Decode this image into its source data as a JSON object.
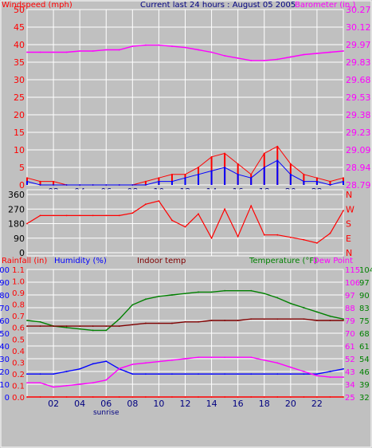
{
  "header": {
    "left_label": "Windspeed (mph)",
    "center_label": "Current last 24 hours : August 05 2005",
    "right_label": "Barometer (in.)"
  },
  "colors": {
    "wind": "#0000ff",
    "gust": "#ff0000",
    "barometer": "#ff00ff",
    "direction": "#ff0000",
    "temperature": "#008000",
    "dew_point": "#ff00ff",
    "humidity": "#0000ff",
    "indoor_temp": "#800000",
    "rainfall": "#ff0000",
    "grid": "#ffffff",
    "background": "#c0c0c0"
  },
  "chart_data": [
    {
      "type": "line",
      "panel": "wind_barometer",
      "title": "",
      "xlabel": "",
      "x_ticks": [
        "02",
        "04",
        "06",
        "08",
        "10",
        "12",
        "14",
        "16",
        "18",
        "20",
        "22"
      ],
      "x_marker": "sunrise",
      "ylabel_left": "Windspeed (mph)",
      "yticks_left": [
        "50",
        "45",
        "40",
        "35",
        "30",
        "25",
        "20",
        "15",
        "10",
        "5",
        "0"
      ],
      "ylim_left": [
        0,
        50
      ],
      "ylabel_right": "Barometer (in.)",
      "yticks_right": [
        "30.27",
        "30.12",
        "29.97",
        "29.83",
        "29.68",
        "29.53",
        "29.38",
        "29.23",
        "29.09",
        "28.94",
        "28.79"
      ],
      "ylim_right": [
        28.79,
        30.27
      ],
      "x_hours": [
        0,
        1,
        2,
        3,
        4,
        5,
        6,
        7,
        8,
        9,
        10,
        11,
        12,
        13,
        14,
        15,
        16,
        17,
        18,
        19,
        20,
        21,
        22,
        23,
        24
      ],
      "series": [
        {
          "name": "Barometer (in.)",
          "axis": "right",
          "values": [
            29.91,
            29.91,
            29.91,
            29.91,
            29.92,
            29.92,
            29.93,
            29.93,
            29.96,
            29.97,
            29.97,
            29.96,
            29.95,
            29.93,
            29.91,
            29.88,
            29.86,
            29.84,
            29.84,
            29.85,
            29.87,
            29.89,
            29.9,
            29.91,
            29.92
          ]
        },
        {
          "name": "Wind gust (mph)",
          "axis": "left",
          "values": [
            2,
            1,
            1,
            0,
            0,
            0,
            0,
            0,
            0,
            1,
            2,
            3,
            3,
            5,
            8,
            9,
            6,
            3,
            9,
            11,
            6,
            3,
            2,
            1,
            2
          ]
        },
        {
          "name": "Windspeed (mph)",
          "axis": "left",
          "values": [
            1,
            0,
            0,
            0,
            0,
            0,
            0,
            0,
            0,
            0,
            1,
            1,
            2,
            3,
            4,
            5,
            3,
            2,
            5,
            7,
            3,
            1,
            1,
            0,
            1
          ]
        }
      ]
    },
    {
      "type": "line",
      "panel": "wind_direction",
      "title": "",
      "xlabel": "",
      "yticks_left": [
        "360",
        "270",
        "180",
        "90",
        "0"
      ],
      "ylim": [
        0,
        360
      ],
      "yticks_right": [
        "N",
        "W",
        "S",
        "E",
        "N"
      ],
      "x_hours": [
        0,
        1,
        2,
        3,
        4,
        5,
        6,
        7,
        8,
        9,
        10,
        11,
        12,
        13,
        14,
        15,
        16,
        17,
        18,
        19,
        20,
        21,
        22,
        23,
        24
      ],
      "series": [
        {
          "name": "Wind direction",
          "values": [
            180,
            230,
            230,
            230,
            230,
            230,
            230,
            230,
            245,
            300,
            320,
            200,
            160,
            240,
            90,
            270,
            100,
            290,
            110,
            110,
            95,
            80,
            60,
            120,
            260
          ]
        }
      ]
    },
    {
      "type": "line",
      "panel": "temperature_humidity",
      "title": "",
      "xlabel": "",
      "x_ticks": [
        "02",
        "04",
        "06",
        "08",
        "10",
        "12",
        "14",
        "16",
        "18",
        "20",
        "22"
      ],
      "x_marker": "sunrise",
      "labels": {
        "rainfall": "Rainfall (in)",
        "humidity": "Humidity (%)",
        "indoor": "Indoor temp",
        "temperature": "Temperature (°F)",
        "dew_point": "Dew Point"
      },
      "yticks_rain": [
        "1.1",
        "1.0",
        "0.9",
        "0.8",
        "0.7",
        "0.6",
        "0.5",
        "0.4",
        "0.3",
        "0.2",
        "0.1",
        "0.0"
      ],
      "yticks_humidity": [
        "100",
        "90",
        "80",
        "70",
        "60",
        "50",
        "40",
        "30",
        "20",
        "10",
        "0"
      ],
      "yticks_temp_a": [
        "115",
        "106",
        "97",
        "88",
        "79",
        "70",
        "61",
        "52",
        "43",
        "34",
        "25"
      ],
      "yticks_temp_b": [
        "104",
        "97",
        "90",
        "83",
        "75",
        "68",
        "61",
        "54",
        "46",
        "39",
        "32"
      ],
      "ylim_humidity": [
        0,
        100
      ],
      "ylim_temp": [
        25,
        115
      ],
      "x_hours": [
        0,
        1,
        2,
        3,
        4,
        5,
        6,
        7,
        8,
        9,
        10,
        11,
        12,
        13,
        14,
        15,
        16,
        17,
        18,
        19,
        20,
        21,
        22,
        23,
        24
      ],
      "series": [
        {
          "name": "Temperature (°F)",
          "values": [
            79,
            78,
            75,
            74,
            73,
            72,
            72,
            80,
            90,
            94,
            96,
            97,
            98,
            99,
            99,
            100,
            100,
            100,
            98,
            95,
            91,
            88,
            85,
            82,
            80
          ]
        },
        {
          "name": "Indoor temp",
          "values": [
            75,
            75,
            75,
            75,
            75,
            75,
            75,
            75,
            76,
            77,
            77,
            77,
            78,
            78,
            79,
            79,
            79,
            80,
            80,
            80,
            80,
            80,
            79,
            79,
            79
          ]
        },
        {
          "name": "Humidity (%)",
          "values": [
            18,
            18,
            18,
            20,
            22,
            26,
            28,
            22,
            18,
            18,
            18,
            18,
            18,
            18,
            18,
            18,
            18,
            18,
            18,
            18,
            18,
            18,
            18,
            20,
            22
          ]
        },
        {
          "name": "Dew Point",
          "values": [
            35,
            35,
            32,
            33,
            34,
            35,
            37,
            45,
            48,
            49,
            50,
            51,
            52,
            53,
            53,
            53,
            53,
            53,
            51,
            49,
            46,
            43,
            40,
            39,
            39
          ]
        },
        {
          "name": "Rainfall (in)",
          "values": [
            0,
            0,
            0,
            0,
            0,
            0,
            0,
            0,
            0,
            0,
            0,
            0,
            0,
            0,
            0,
            0,
            0,
            0,
            0,
            0,
            0,
            0,
            0,
            0,
            0
          ]
        }
      ]
    }
  ]
}
